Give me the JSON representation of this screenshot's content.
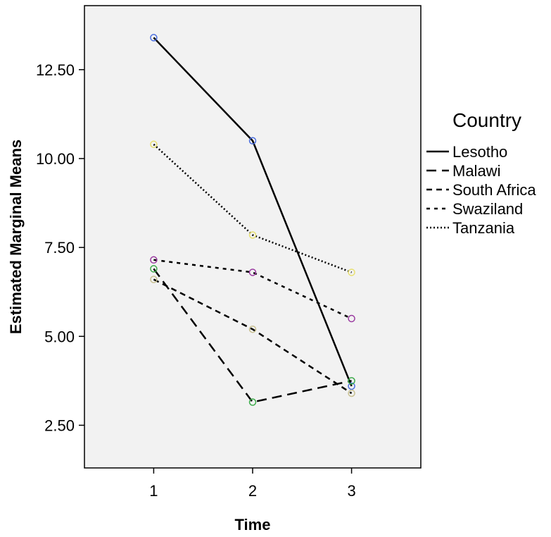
{
  "chart_data": {
    "type": "line",
    "title": "",
    "xlabel": "Time",
    "ylabel": "Estimated Marginal Means",
    "x": [
      1,
      2,
      3
    ],
    "x_tick_labels": [
      "1",
      "2",
      "3"
    ],
    "xlim": [
      0.3,
      3.7
    ],
    "y_ticks": [
      2.5,
      5.0,
      7.5,
      10.0,
      12.5
    ],
    "y_tick_labels": [
      "2.50",
      "5.00",
      "7.50",
      "10.00",
      "12.50"
    ],
    "ylim": [
      1.3,
      14.3
    ],
    "grid": false,
    "plot_background": "#f2f2f2",
    "legend": {
      "title": "Country",
      "placement": "right"
    },
    "series": [
      {
        "name": "Lesotho",
        "values": [
          13.4,
          10.5,
          3.6
        ],
        "line_style": "solid",
        "marker_color": "#4a6ee0"
      },
      {
        "name": "Malawi",
        "values": [
          6.9,
          3.15,
          3.75
        ],
        "line_style": "long-dash",
        "marker_color": "#3caa4a"
      },
      {
        "name": "South Africa",
        "values": [
          6.6,
          5.2,
          3.4
        ],
        "line_style": "dash",
        "marker_color": "#c8c090"
      },
      {
        "name": "Swaziland",
        "values": [
          7.15,
          6.8,
          5.5
        ],
        "line_style": "short-dash",
        "marker_color": "#9a3aa0"
      },
      {
        "name": "Tanzania",
        "values": [
          10.4,
          7.85,
          6.8
        ],
        "line_style": "dotted",
        "marker_color": "#e8e070"
      }
    ]
  }
}
